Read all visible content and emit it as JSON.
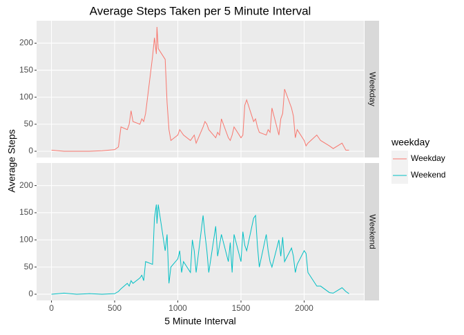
{
  "chart_data": {
    "type": "line",
    "title": "Average Steps Taken per 5 Minute Interval",
    "x_label": "5 Minute Interval",
    "y_label": "Average Steps",
    "legend_title": "weekday",
    "x": [
      0,
      100,
      200,
      300,
      400,
      500,
      530,
      550,
      600,
      615,
      630,
      645,
      700,
      715,
      730,
      745,
      800,
      815,
      830,
      835,
      845,
      900,
      915,
      930,
      945,
      1000,
      1015,
      1030,
      1045,
      1100,
      1115,
      1130,
      1145,
      1200,
      1215,
      1230,
      1245,
      1300,
      1315,
      1330,
      1345,
      1400,
      1415,
      1430,
      1445,
      1500,
      1515,
      1530,
      1545,
      1600,
      1615,
      1630,
      1645,
      1700,
      1715,
      1730,
      1745,
      1800,
      1815,
      1830,
      1845,
      1900,
      1915,
      1930,
      1945,
      2000,
      2015,
      2030,
      2100,
      2130,
      2200,
      2230,
      2300,
      2330,
      2355
    ],
    "series": [
      {
        "name": "Weekday",
        "color": "#F8766D",
        "values": [
          2,
          0,
          0,
          0,
          1,
          3,
          8,
          45,
          40,
          50,
          75,
          55,
          50,
          60,
          55,
          70,
          175,
          210,
          180,
          230,
          190,
          170,
          90,
          40,
          20,
          30,
          40,
          35,
          30,
          20,
          25,
          30,
          15,
          45,
          55,
          50,
          40,
          25,
          35,
          30,
          60,
          25,
          20,
          30,
          45,
          25,
          30,
          85,
          95,
          55,
          60,
          45,
          35,
          30,
          40,
          35,
          80,
          30,
          60,
          70,
          115,
          80,
          65,
          25,
          40,
          20,
          10,
          15,
          30,
          20,
          10,
          5,
          15,
          2,
          2
        ]
      },
      {
        "name": "Weekend",
        "color": "#00BFC4",
        "values": [
          0,
          2,
          0,
          1,
          0,
          1,
          5,
          10,
          20,
          15,
          25,
          20,
          30,
          35,
          25,
          60,
          55,
          140,
          165,
          130,
          165,
          80,
          110,
          20,
          50,
          65,
          80,
          40,
          60,
          40,
          100,
          80,
          40,
          145,
          110,
          80,
          40,
          125,
          70,
          90,
          110,
          60,
          95,
          40,
          110,
          60,
          115,
          90,
          80,
          140,
          145,
          90,
          50,
          110,
          80,
          60,
          50,
          100,
          70,
          105,
          60,
          85,
          70,
          40,
          55,
          80,
          75,
          40,
          15,
          15,
          3,
          2,
          12,
          5,
          1
        ]
      }
    ],
    "xlim": [
      -117.75,
      2472.75
    ],
    "xticks": [
      0,
      500,
      1000,
      1500,
      2000
    ],
    "ylim": [
      -11.5,
      241.5
    ],
    "yticks": [
      0,
      50,
      100,
      150,
      200
    ],
    "grid": true
  }
}
